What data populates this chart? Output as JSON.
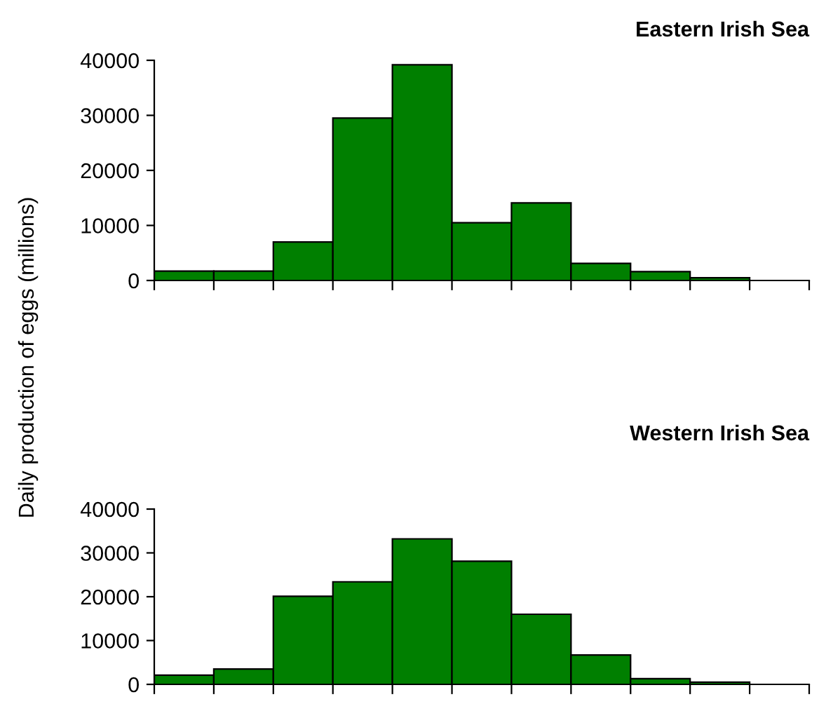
{
  "chart_data": [
    {
      "type": "bar",
      "title": "Eastern Irish Sea",
      "ylabel": "Daily production of eggs (millions)",
      "categories": [
        null,
        null,
        null,
        null,
        null,
        null,
        null,
        null,
        null,
        null,
        null
      ],
      "series": [
        {
          "color": "#007f00",
          "values": [
            1700,
            1700,
            7000,
            29500,
            39200,
            10500,
            14100,
            3100,
            1600,
            500,
            null
          ]
        }
      ],
      "ylim": [
        0,
        40000
      ],
      "yticks": [
        0,
        10000,
        20000,
        30000,
        40000
      ],
      "tick_labels": "y",
      "grid": false,
      "legend": false
    },
    {
      "type": "bar",
      "title": "Western Irish Sea",
      "categories": [
        null,
        null,
        null,
        null,
        null,
        null,
        null,
        null,
        null,
        null,
        null
      ],
      "series": [
        {
          "color": "#007f00",
          "values": [
            2100,
            3500,
            20100,
            23400,
            33200,
            28100,
            16000,
            6700,
            1300,
            500,
            null
          ]
        }
      ],
      "ylim": [
        0,
        40000
      ],
      "yticks": [
        0,
        10000,
        20000,
        30000,
        40000
      ],
      "tick_labels": "y",
      "grid": false,
      "legend": false
    }
  ]
}
